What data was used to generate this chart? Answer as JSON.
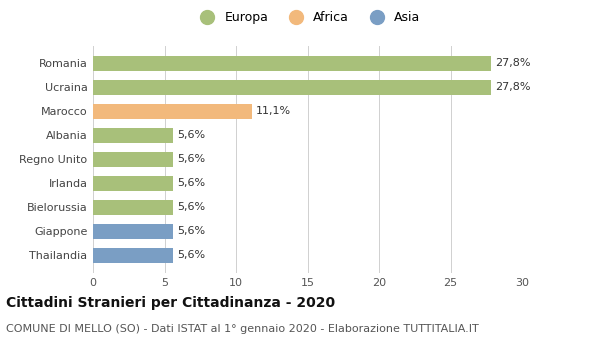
{
  "categories": [
    "Romania",
    "Ucraina",
    "Marocco",
    "Albania",
    "Regno Unito",
    "Irlanda",
    "Bielorussia",
    "Giappone",
    "Thailandia"
  ],
  "values": [
    27.8,
    27.8,
    11.1,
    5.6,
    5.6,
    5.6,
    5.6,
    5.6,
    5.6
  ],
  "labels": [
    "27,8%",
    "27,8%",
    "11,1%",
    "5,6%",
    "5,6%",
    "5,6%",
    "5,6%",
    "5,6%",
    "5,6%"
  ],
  "bar_colors": [
    "#a8c07a",
    "#a8c07a",
    "#f2b97c",
    "#a8c07a",
    "#a8c07a",
    "#a8c07a",
    "#a8c07a",
    "#7a9ec4",
    "#7a9ec4"
  ],
  "legend_labels": [
    "Europa",
    "Africa",
    "Asia"
  ],
  "legend_colors": [
    "#a8c07a",
    "#f2b97c",
    "#7a9ec4"
  ],
  "xlim": [
    0,
    30
  ],
  "xticks": [
    0,
    5,
    10,
    15,
    20,
    25,
    30
  ],
  "title": "Cittadini Stranieri per Cittadinanza - 2020",
  "subtitle": "COMUNE DI MELLO (SO) - Dati ISTAT al 1° gennaio 2020 - Elaborazione TUTTITALIA.IT",
  "title_fontsize": 10,
  "subtitle_fontsize": 8,
  "label_fontsize": 8,
  "ytick_fontsize": 8,
  "xtick_fontsize": 8,
  "legend_fontsize": 9,
  "background_color": "#ffffff",
  "grid_color": "#d0d0d0",
  "bar_height": 0.62
}
